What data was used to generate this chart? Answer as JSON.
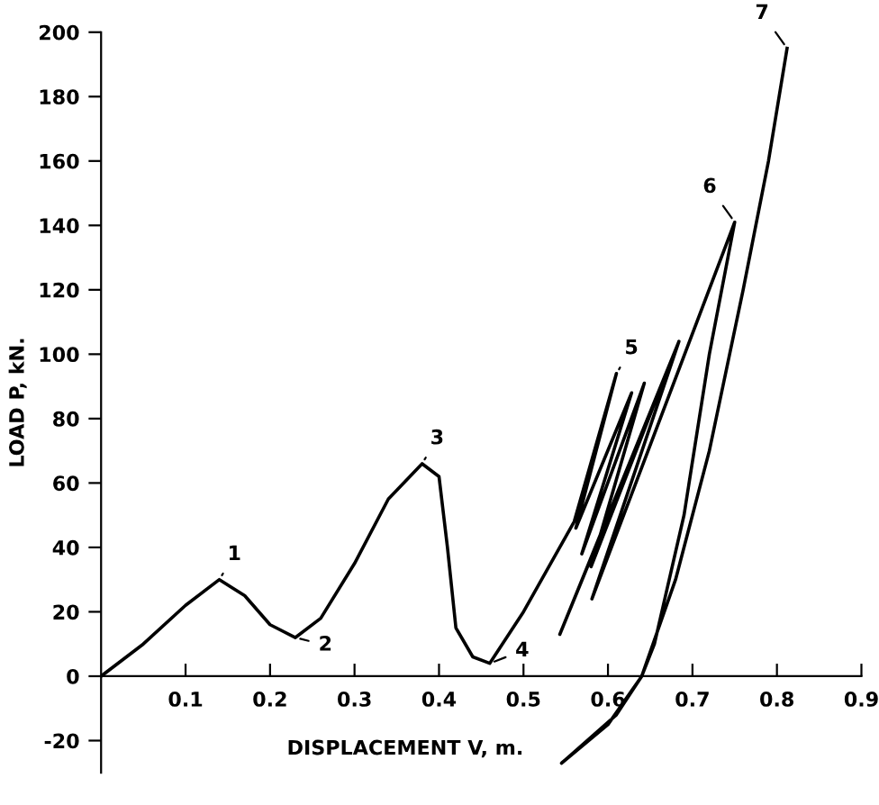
{
  "chart_data": {
    "type": "line",
    "xlabel": "DISPLACEMENT V, m.",
    "ylabel": "LOAD P, kN.",
    "xlim": [
      0,
      0.9
    ],
    "ylim": [
      -30,
      200
    ],
    "xticks": [
      0.1,
      0.2,
      0.3,
      0.4,
      0.5,
      0.6,
      0.7,
      0.8,
      0.9
    ],
    "yticks": [
      -20,
      0,
      20,
      40,
      60,
      80,
      100,
      120,
      140,
      160,
      180,
      200
    ],
    "grid": false,
    "legend": false,
    "marker": "none",
    "line_style": "solid",
    "series": [
      {
        "color": "#000000",
        "x": [
          0,
          0.05,
          0.1,
          0.14,
          0.17,
          0.2,
          0.23,
          0.26,
          0.3,
          0.34,
          0.38,
          0.4,
          0.41,
          0.42,
          0.44,
          0.46,
          0.5,
          0.56,
          0.61,
          0.562,
          0.628,
          0.569,
          0.643,
          0.58,
          0.66,
          0.543,
          0.684,
          0.581,
          0.75,
          0.72,
          0.69,
          0.655,
          0.64,
          0.6,
          0.545,
          0.61,
          0.64,
          0.68,
          0.72,
          0.76,
          0.79,
          0.812
        ],
        "values": [
          0,
          10,
          22,
          30,
          25,
          16,
          12,
          18,
          35,
          55,
          66,
          62,
          40,
          15,
          6,
          4,
          20,
          48,
          94,
          46,
          88,
          38,
          91,
          34,
          88,
          13,
          104,
          24,
          141,
          100,
          50,
          10,
          0,
          -15,
          -27,
          -12,
          0,
          30,
          70,
          120,
          160,
          195
        ]
      }
    ],
    "annotations": [
      {
        "text": "1",
        "x": 0.14,
        "y": 30
      },
      {
        "text": "2",
        "x": 0.23,
        "y": 12
      },
      {
        "text": "3",
        "x": 0.38,
        "y": 66
      },
      {
        "text": "4",
        "x": 0.46,
        "y": 4
      },
      {
        "text": "5",
        "x": 0.61,
        "y": 94
      },
      {
        "text": "6",
        "x": 0.75,
        "y": 141
      },
      {
        "text": "7",
        "x": 0.812,
        "y": 195
      }
    ]
  }
}
